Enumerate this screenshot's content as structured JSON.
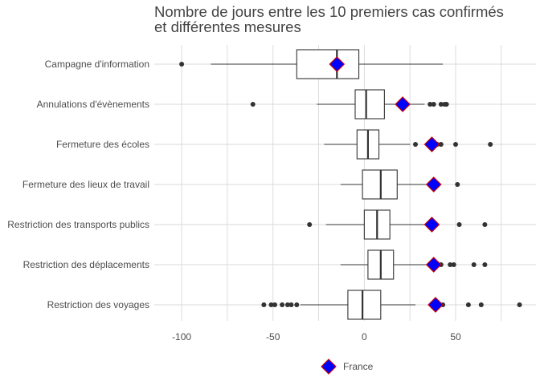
{
  "chart_data": {
    "type": "boxplot",
    "title_lines": [
      "Nombre de jours entre les 10 premiers cas confirmés",
      "et différentes mesures"
    ],
    "xlabel": "",
    "ylabel": "",
    "xlim": [
      -115,
      94
    ],
    "x_ticks": [
      -100,
      -50,
      0,
      50
    ],
    "x_tick_labels": [
      "-100",
      "-50",
      "0",
      "50"
    ],
    "grid": true,
    "legend_position": "bottom",
    "categories": [
      "Campagne d'information",
      "Annulations d'évènements",
      "Fermeture des écoles",
      "Fermeture des lieux de travail",
      "Restriction des transports publics",
      "Restriction des déplacements",
      "Restriction des voyages"
    ],
    "boxes": [
      {
        "whisker_low": -84,
        "q1": -37,
        "median": -15,
        "q3": -3,
        "whisker_high": 43,
        "outliers": [
          -100
        ]
      },
      {
        "whisker_low": -26,
        "q1": -5,
        "median": 1,
        "q3": 11,
        "whisker_high": 33,
        "outliers": [
          -61,
          36,
          38,
          42,
          44,
          45
        ]
      },
      {
        "whisker_low": -22,
        "q1": -4,
        "median": 2,
        "q3": 8,
        "whisker_high": 25,
        "outliers": [
          28,
          40,
          42,
          50,
          69
        ]
      },
      {
        "whisker_low": -13,
        "q1": -1,
        "median": 9,
        "q3": 18,
        "whisker_high": 37,
        "outliers": [
          51
        ]
      },
      {
        "whisker_low": -21,
        "q1": 0,
        "median": 7,
        "q3": 14,
        "whisker_high": 35,
        "outliers": [
          -30,
          52,
          66
        ]
      },
      {
        "whisker_low": -13,
        "q1": 2,
        "median": 9,
        "q3": 16,
        "whisker_high": 38,
        "outliers": [
          42,
          47,
          49,
          60,
          66
        ]
      },
      {
        "whisker_low": -35,
        "q1": -9,
        "median": -1,
        "q3": 9,
        "whisker_high": 28,
        "outliers": [
          -55,
          -51,
          -49,
          -45,
          -42,
          -40,
          -37,
          43,
          57,
          64,
          85
        ]
      }
    ],
    "highlight": {
      "name": "France",
      "values": [
        -15,
        21,
        37,
        38,
        37,
        38,
        39
      ],
      "fill_color": "#0000ff",
      "stroke_color": "#cc0000"
    },
    "colors": {
      "box_stroke": "#333333",
      "grid": "#d9d9d9",
      "outlier": "#333333"
    }
  }
}
